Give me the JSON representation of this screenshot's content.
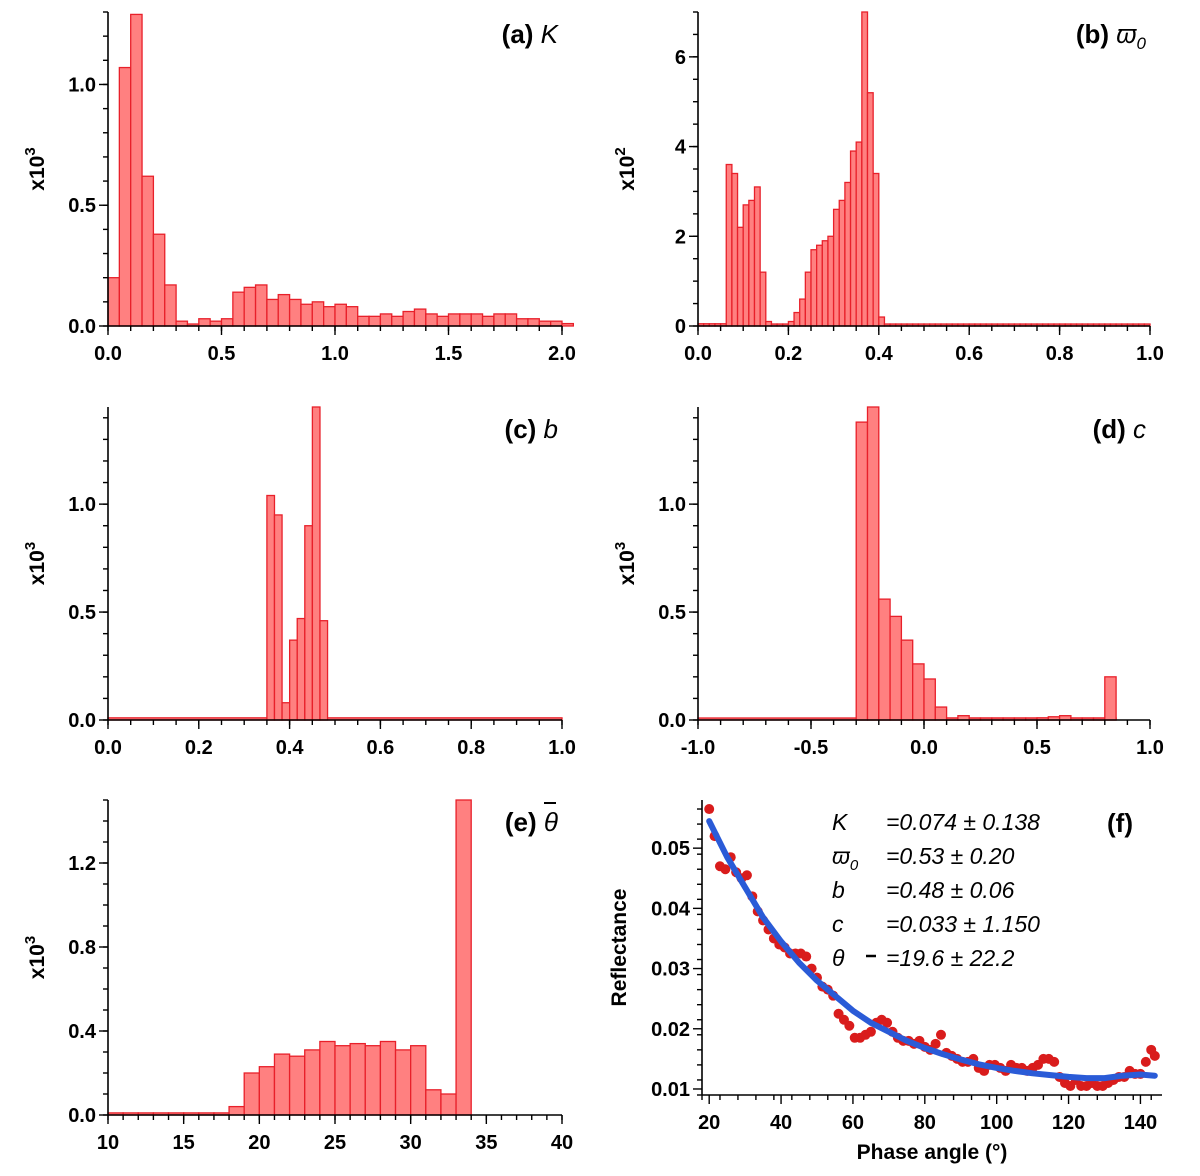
{
  "chart_data": [
    {
      "type": "bar",
      "panel": "a",
      "title_label": "(a)",
      "title_symbol": "K",
      "multiplier": "x10",
      "multiplier_exp": "3",
      "bin_start": 0.0,
      "bin_width": 0.05,
      "values": [
        0.2,
        1.07,
        1.29,
        0.62,
        0.38,
        0.17,
        0.02,
        0.0,
        0.03,
        0.02,
        0.03,
        0.14,
        0.16,
        0.17,
        0.11,
        0.13,
        0.11,
        0.09,
        0.1,
        0.08,
        0.09,
        0.08,
        0.04,
        0.04,
        0.05,
        0.04,
        0.06,
        0.07,
        0.05,
        0.04,
        0.05,
        0.05,
        0.05,
        0.04,
        0.05,
        0.05,
        0.03,
        0.03,
        0.02,
        0.02,
        0.01
      ],
      "xlim": [
        0.0,
        2.0
      ],
      "ylim": [
        0.0,
        1.3
      ],
      "xticks": [
        0.0,
        0.5,
        1.0,
        1.5,
        2.0
      ],
      "xtick_labels": [
        "0.0",
        "0.5",
        "1.0",
        "1.5",
        "2.0"
      ],
      "xminor": 0.1,
      "yticks": [
        0.0,
        0.5,
        1.0
      ],
      "ytick_labels": [
        "0.0",
        "0.5",
        "1.0"
      ],
      "yminor": 0.1
    },
    {
      "type": "bar",
      "panel": "b",
      "title_label": "(b)",
      "title_symbol": "ϖ",
      "title_sub": "0",
      "multiplier": "x10",
      "multiplier_exp": "2",
      "bin_start": 0.0,
      "bin_width": 0.0125,
      "values": [
        0.05,
        0.05,
        0.05,
        0.05,
        0.05,
        3.6,
        3.4,
        2.2,
        2.7,
        2.8,
        3.1,
        1.2,
        0.1,
        0.0,
        0.0,
        0.0,
        0.1,
        0.3,
        0.6,
        1.2,
        1.7,
        1.8,
        1.9,
        2.0,
        2.6,
        2.8,
        3.2,
        3.9,
        4.1,
        7.0,
        5.2,
        3.4,
        0.2,
        0.02,
        0.02,
        0.02,
        0.02,
        0.02,
        0.02,
        0.02,
        0.02,
        0.02,
        0.02,
        0.02,
        0.02,
        0.02,
        0.02,
        0.02,
        0.02,
        0.02,
        0.02,
        0.02,
        0.02,
        0.02,
        0.02,
        0.02,
        0.02,
        0.02,
        0.02,
        0.02,
        0.02,
        0.02,
        0.02,
        0.02,
        0.02,
        0.02,
        0.02,
        0.02,
        0.02,
        0.02,
        0.02,
        0.02,
        0.02,
        0.02,
        0.02,
        0.02,
        0.02,
        0.02,
        0.02,
        0.02
      ],
      "xlim": [
        0.0,
        1.0
      ],
      "ylim": [
        0.0,
        7.0
      ],
      "xticks": [
        0.0,
        0.2,
        0.4,
        0.6,
        0.8,
        1.0
      ],
      "xtick_labels": [
        "0.0",
        "0.2",
        "0.4",
        "0.6",
        "0.8",
        "1.0"
      ],
      "xminor": 0.05,
      "yticks": [
        0,
        2,
        4,
        6
      ],
      "ytick_labels": [
        "0",
        "2",
        "4",
        "6"
      ],
      "yminor": 0.5
    },
    {
      "type": "bar",
      "panel": "c",
      "title_label": "(c)",
      "title_symbol": "b",
      "multiplier": "x10",
      "multiplier_exp": "3",
      "bin_start": 0.35,
      "bin_width": 0.0167,
      "values": [
        1.04,
        0.95,
        0.08,
        0.37,
        0.47,
        0.9,
        1.45,
        0.46
      ],
      "baseline_from": 0.0,
      "baseline_to": 1.0,
      "baseline_value": 0.01,
      "xlim": [
        0.0,
        1.0
      ],
      "ylim": [
        0.0,
        1.45
      ],
      "xticks": [
        0.0,
        0.2,
        0.4,
        0.6,
        0.8,
        1.0
      ],
      "xtick_labels": [
        "0.0",
        "0.2",
        "0.4",
        "0.6",
        "0.8",
        "1.0"
      ],
      "xminor": 0.05,
      "yticks": [
        0.0,
        0.5,
        1.0
      ],
      "ytick_labels": [
        "0.0",
        "0.5",
        "1.0"
      ],
      "yminor": 0.1
    },
    {
      "type": "bar",
      "panel": "d",
      "title_label": "(d)",
      "title_symbol": "c",
      "multiplier": "x10",
      "multiplier_exp": "3",
      "bin_start": -0.3,
      "bin_width": 0.05,
      "values": [
        1.38,
        1.45,
        0.56,
        0.48,
        0.37,
        0.26,
        0.19,
        0.06,
        0.0,
        0.02,
        0.0,
        0.0,
        0.0,
        0.0,
        0.0,
        0.0,
        0.01,
        0.015,
        0.02,
        0.0,
        0.0,
        0.0,
        0.2
      ],
      "baseline_from": -1.0,
      "baseline_to": 0.85,
      "baseline_value": 0.005,
      "xlim": [
        -1.0,
        1.0
      ],
      "ylim": [
        0.0,
        1.45
      ],
      "xticks": [
        -1.0,
        -0.5,
        0.0,
        0.5,
        1.0
      ],
      "xtick_labels": [
        "-1.0",
        "-0.5",
        "0.0",
        "0.5",
        "1.0"
      ],
      "xminor": 0.1,
      "yticks": [
        0.0,
        0.5,
        1.0
      ],
      "ytick_labels": [
        "0.0",
        "0.5",
        "1.0"
      ],
      "yminor": 0.1
    },
    {
      "type": "bar",
      "panel": "e",
      "title_label": "(e)",
      "title_symbol": "θ",
      "multiplier": "x10",
      "multiplier_exp": "3",
      "bin_start": 10.0,
      "bin_width": 1.0,
      "values": [
        0.01,
        0.01,
        0.01,
        0.01,
        0.01,
        0.01,
        0.01,
        0.01,
        0.04,
        0.2,
        0.23,
        0.29,
        0.28,
        0.31,
        0.35,
        0.33,
        0.34,
        0.33,
        0.35,
        0.31,
        0.33,
        0.12,
        0.1,
        1.5
      ],
      "xlim": [
        10,
        40
      ],
      "ylim": [
        0.0,
        1.5
      ],
      "xticks": [
        10,
        15,
        20,
        25,
        30,
        35,
        40
      ],
      "xtick_labels": [
        "10",
        "15",
        "20",
        "25",
        "30",
        "35",
        "40"
      ],
      "xminor": 1,
      "yticks": [
        0.0,
        0.4,
        0.8,
        1.2
      ],
      "ytick_labels": [
        "0.0",
        "0.4",
        "0.8",
        "1.2"
      ],
      "yminor": 0.1
    },
    {
      "type": "scatter",
      "panel": "f",
      "title_label": "(f)",
      "xlabel": "Phase angle (°)",
      "ylabel": "Reflectance",
      "xlim": [
        18,
        146
      ],
      "ylim": [
        0.009,
        0.058
      ],
      "xticks": [
        20,
        40,
        60,
        80,
        100,
        120,
        140
      ],
      "xtick_labels": [
        "20",
        "40",
        "60",
        "80",
        "100",
        "120",
        "140"
      ],
      "xminor": 5,
      "yticks": [
        0.01,
        0.02,
        0.03,
        0.04,
        0.05
      ],
      "ytick_labels": [
        "0.01",
        "0.02",
        "0.03",
        "0.04",
        "0.05"
      ],
      "yminor": 0.0025,
      "points": [
        [
          20.0,
          0.0565
        ],
        [
          21.5,
          0.052
        ],
        [
          23.0,
          0.047
        ],
        [
          24.5,
          0.0465
        ],
        [
          26.0,
          0.0485
        ],
        [
          27.5,
          0.046
        ],
        [
          29.0,
          0.045
        ],
        [
          30.5,
          0.0455
        ],
        [
          32.0,
          0.042
        ],
        [
          33.5,
          0.0395
        ],
        [
          35.0,
          0.038
        ],
        [
          36.5,
          0.0365
        ],
        [
          38.0,
          0.035
        ],
        [
          39.5,
          0.034
        ],
        [
          41.0,
          0.0335
        ],
        [
          42.5,
          0.0325
        ],
        [
          44.0,
          0.0325
        ],
        [
          45.5,
          0.0325
        ],
        [
          47.0,
          0.032
        ],
        [
          48.5,
          0.03
        ],
        [
          50.0,
          0.0285
        ],
        [
          51.5,
          0.027
        ],
        [
          53.0,
          0.0265
        ],
        [
          54.5,
          0.0255
        ],
        [
          56.0,
          0.0225
        ],
        [
          57.5,
          0.0215
        ],
        [
          59.0,
          0.0205
        ],
        [
          60.5,
          0.0185
        ],
        [
          62.0,
          0.0185
        ],
        [
          63.5,
          0.019
        ],
        [
          65.0,
          0.0195
        ],
        [
          66.5,
          0.021
        ],
        [
          68.0,
          0.0215
        ],
        [
          69.5,
          0.021
        ],
        [
          71.0,
          0.0195
        ],
        [
          72.5,
          0.0185
        ],
        [
          74.0,
          0.018
        ],
        [
          75.5,
          0.018
        ],
        [
          77.0,
          0.0175
        ],
        [
          78.5,
          0.018
        ],
        [
          80.0,
          0.017
        ],
        [
          81.5,
          0.0165
        ],
        [
          83.0,
          0.0175
        ],
        [
          84.5,
          0.019
        ],
        [
          86.0,
          0.016
        ],
        [
          87.5,
          0.0155
        ],
        [
          89.0,
          0.015
        ],
        [
          90.5,
          0.0145
        ],
        [
          92.0,
          0.0145
        ],
        [
          93.5,
          0.015
        ],
        [
          95.0,
          0.0135
        ],
        [
          96.5,
          0.013
        ],
        [
          98.0,
          0.014
        ],
        [
          99.5,
          0.014
        ],
        [
          101.0,
          0.0135
        ],
        [
          102.5,
          0.013
        ],
        [
          104.0,
          0.014
        ],
        [
          105.5,
          0.0135
        ],
        [
          107.0,
          0.0135
        ],
        [
          108.5,
          0.013
        ],
        [
          110.0,
          0.0135
        ],
        [
          111.5,
          0.014
        ],
        [
          113.0,
          0.015
        ],
        [
          114.5,
          0.015
        ],
        [
          116.0,
          0.0145
        ],
        [
          117.5,
          0.012
        ],
        [
          119.0,
          0.011
        ],
        [
          120.5,
          0.0105
        ],
        [
          122.0,
          0.0115
        ],
        [
          123.5,
          0.0105
        ],
        [
          125.0,
          0.0105
        ],
        [
          126.5,
          0.011
        ],
        [
          128.0,
          0.0105
        ],
        [
          129.5,
          0.0105
        ],
        [
          131.0,
          0.011
        ],
        [
          132.5,
          0.0115
        ],
        [
          134.0,
          0.012
        ],
        [
          135.5,
          0.012
        ],
        [
          137.0,
          0.013
        ],
        [
          138.5,
          0.0125
        ],
        [
          140.0,
          0.0125
        ],
        [
          141.5,
          0.0145
        ],
        [
          143.0,
          0.0165
        ],
        [
          144.0,
          0.0155
        ]
      ],
      "fit_curve": [
        [
          20,
          0.0545
        ],
        [
          25,
          0.0485
        ],
        [
          30,
          0.0435
        ],
        [
          35,
          0.0385
        ],
        [
          40,
          0.0345
        ],
        [
          45,
          0.031
        ],
        [
          50,
          0.028
        ],
        [
          55,
          0.0255
        ],
        [
          60,
          0.023
        ],
        [
          65,
          0.021
        ],
        [
          70,
          0.0195
        ],
        [
          75,
          0.018
        ],
        [
          80,
          0.0168
        ],
        [
          85,
          0.0158
        ],
        [
          90,
          0.0149
        ],
        [
          95,
          0.0141
        ],
        [
          100,
          0.0135
        ],
        [
          105,
          0.013
        ],
        [
          110,
          0.0126
        ],
        [
          115,
          0.0123
        ],
        [
          120,
          0.012
        ],
        [
          125,
          0.0118
        ],
        [
          130,
          0.0118
        ],
        [
          135,
          0.0122
        ],
        [
          140,
          0.0124
        ],
        [
          144,
          0.0122
        ]
      ],
      "params": [
        {
          "symbol": "K",
          "value": "=0.074 ± 0.138"
        },
        {
          "symbol": "ϖ",
          "sub": "0",
          "value": "=0.53 ± 0.20"
        },
        {
          "symbol": "b",
          "value": "=0.48 ± 0.06"
        },
        {
          "symbol": "c",
          "value": "=0.033 ± 1.150"
        },
        {
          "symbol": "θ",
          "value": "=19.6 ± 22.2"
        }
      ]
    }
  ]
}
